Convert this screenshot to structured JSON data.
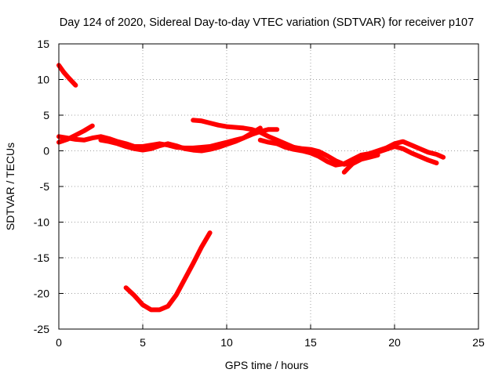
{
  "chart_data": {
    "type": "line",
    "title": "Day 124 of 2020, Sidereal Day-to-day VTEC variation (SDTVAR) for receiver p107",
    "xlabel": "GPS time / hours",
    "ylabel": "SDTVAR / TECUs",
    "xlim": [
      0,
      25
    ],
    "ylim": [
      -25,
      15
    ],
    "xticks": [
      0,
      5,
      10,
      15,
      20,
      25
    ],
    "yticks": [
      15,
      10,
      5,
      0,
      -5,
      -10,
      -15,
      -20,
      -25
    ],
    "xtick_labels": [
      "0",
      "5",
      "10",
      "15",
      "20",
      "25"
    ],
    "ytick_labels": [
      "15",
      "10",
      "5",
      "0",
      "-5",
      "-10",
      "-15",
      "-20",
      "-25"
    ],
    "grid": true,
    "series_color": "#ff0000",
    "series": [
      {
        "name": "arc-early-descending",
        "x": [
          0,
          0.3,
          0.6,
          1.0
        ],
        "y": [
          12,
          11,
          10.2,
          9.2
        ]
      },
      {
        "name": "arc-main-1",
        "x": [
          0,
          0.5,
          1.0,
          1.5,
          2.0,
          2.5,
          3.0,
          3.5,
          4.0,
          4.5,
          5.0,
          5.5,
          6.0,
          6.5,
          7.0,
          7.5,
          8.0,
          8.5,
          9.0,
          9.5,
          10.0,
          10.5,
          11.0,
          11.5,
          12.0,
          12.5,
          13.0
        ],
        "y": [
          2.0,
          1.8,
          1.6,
          1.5,
          1.8,
          2.0,
          1.7,
          1.3,
          1.0,
          0.6,
          0.6,
          0.8,
          1.0,
          0.8,
          0.5,
          0.4,
          0.4,
          0.5,
          0.6,
          0.9,
          1.2,
          1.5,
          1.8,
          2.3,
          2.7,
          3.0,
          3.0
        ]
      },
      {
        "name": "arc-main-2",
        "x": [
          0,
          0.5,
          1.0,
          1.5,
          2.0
        ],
        "y": [
          1.2,
          1.6,
          2.2,
          2.8,
          3.5
        ]
      },
      {
        "name": "arc-main-3",
        "x": [
          2.5,
          3.0,
          3.5,
          4.0,
          4.5,
          5.0,
          5.5,
          6.0,
          6.5,
          7.0,
          7.5,
          8.0,
          8.5,
          9.0,
          9.5,
          10.0,
          10.5,
          11.0,
          11.5,
          12.0
        ],
        "y": [
          1.5,
          1.3,
          1.0,
          0.6,
          0.3,
          0.1,
          0.3,
          0.7,
          1.0,
          0.7,
          0.3,
          0.1,
          0.0,
          0.2,
          0.5,
          0.9,
          1.3,
          1.8,
          2.5,
          3.2
        ]
      },
      {
        "name": "arc-high",
        "x": [
          8.0,
          8.5,
          9.0,
          9.5,
          10.0,
          10.5,
          11.0,
          11.5,
          12.0,
          12.5,
          13.0,
          13.5,
          14.0
        ],
        "y": [
          4.3,
          4.2,
          3.9,
          3.6,
          3.4,
          3.3,
          3.2,
          3.0,
          2.6,
          2.0,
          1.5,
          1.0,
          0.5
        ]
      },
      {
        "name": "arc-late-1",
        "x": [
          12.0,
          12.5,
          13.0,
          13.5,
          14.0,
          14.5,
          15.0,
          15.5,
          16.0,
          16.5,
          17.0,
          17.5,
          18.0,
          18.5,
          19.0,
          19.5,
          20.0,
          20.5,
          21.0,
          21.5,
          22.0,
          22.5,
          22.9
        ],
        "y": [
          1.5,
          1.2,
          1.0,
          0.5,
          0.2,
          0.0,
          -0.3,
          -0.8,
          -1.5,
          -2.0,
          -1.8,
          -1.2,
          -0.6,
          -0.4,
          0.0,
          0.4,
          1.0,
          1.3,
          0.8,
          0.3,
          -0.2,
          -0.5,
          -0.9
        ]
      },
      {
        "name": "arc-late-2",
        "x": [
          13.0,
          13.5,
          14.0,
          14.5,
          15.0,
          15.5,
          16.0,
          16.5,
          17.0,
          17.5,
          18.0,
          18.5,
          19.0,
          19.5,
          20.0,
          20.5,
          21.0,
          21.5,
          22.0,
          22.5
        ],
        "y": [
          1.2,
          0.8,
          0.5,
          0.3,
          0.2,
          -0.1,
          -0.7,
          -1.4,
          -1.9,
          -1.6,
          -1.0,
          -0.6,
          -0.2,
          0.2,
          0.6,
          0.3,
          -0.3,
          -0.8,
          -1.3,
          -1.7
        ]
      },
      {
        "name": "arc-late-3",
        "x": [
          17.0,
          17.2,
          17.5,
          18.0,
          18.5,
          19.0
        ],
        "y": [
          -3.0,
          -2.5,
          -1.8,
          -1.2,
          -0.9,
          -0.6
        ]
      },
      {
        "name": "arc-dip",
        "x": [
          4.0,
          4.5,
          5.0,
          5.5,
          6.0,
          6.5,
          7.0,
          7.5,
          8.0,
          8.5,
          9.0
        ],
        "y": [
          -19.2,
          -20.3,
          -21.6,
          -22.3,
          -22.3,
          -21.8,
          -20.2,
          -18.0,
          -15.8,
          -13.5,
          -11.5
        ]
      }
    ]
  }
}
